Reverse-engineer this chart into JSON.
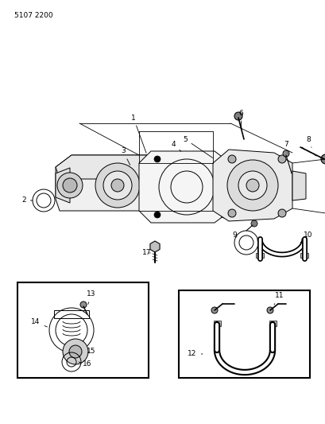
{
  "title": "5107 2200",
  "bg_color": "#ffffff",
  "line_color": "#000000",
  "fig_width": 4.1,
  "fig_height": 5.33,
  "dpi": 100
}
